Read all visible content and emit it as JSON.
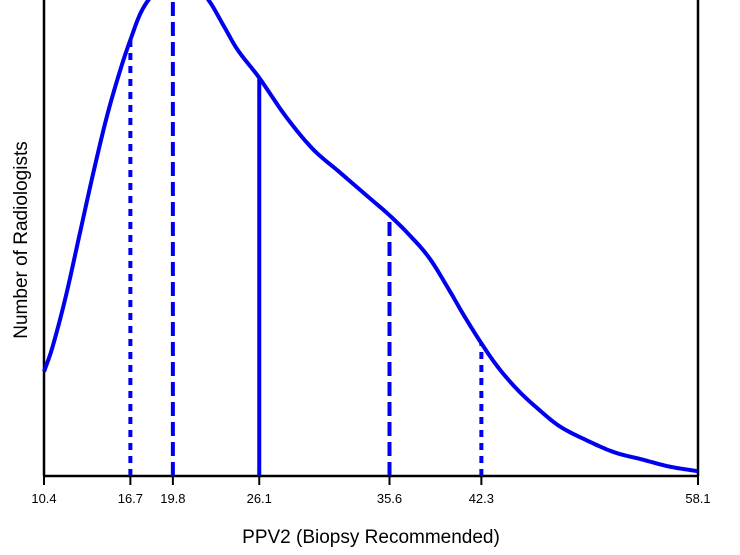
{
  "chart_data": {
    "type": "line",
    "title": "",
    "xlabel": "PPV2 (Biopsy Recommended)",
    "ylabel": "Number of Radiologists",
    "xlim": [
      10.4,
      58.1
    ],
    "ylim": [
      0,
      100
    ],
    "grid": false,
    "legend": "none",
    "y_ticks_labeled": false,
    "x_ticks": [
      10.4,
      16.7,
      19.8,
      26.1,
      35.6,
      42.3,
      58.1
    ],
    "x_tick_labels": [
      "10.4",
      "16.7",
      "19.8",
      "26.1",
      "35.6",
      "42.3",
      "58.1"
    ],
    "series": [
      {
        "x": [
          10.4,
          11.0,
          12.0,
          13.0,
          14.0,
          15.0,
          16.0,
          16.7,
          17.5,
          18.5,
          19.8,
          20.6,
          21.5,
          22.5,
          23.5,
          24.5,
          26.1,
          28.0,
          30.0,
          32.0,
          34.0,
          35.6,
          37.0,
          38.5,
          40.0,
          41.0,
          42.3,
          43.5,
          45.0,
          46.5,
          48.0,
          50.0,
          52.0,
          54.0,
          56.0,
          58.1
        ],
        "y": [
          22,
          27,
          38,
          51,
          64,
          76,
          86,
          92,
          98,
          102,
          104,
          104,
          103.5,
          100,
          95,
          90,
          84,
          76,
          69,
          64,
          59,
          55,
          51,
          46,
          39,
          34,
          28,
          23,
          18,
          14,
          10.5,
          7.5,
          5,
          3.5,
          2,
          1
        ]
      }
    ],
    "vertical_lines": [
      {
        "x": 16.7,
        "style": "dotted"
      },
      {
        "x": 19.8,
        "style": "dashed"
      },
      {
        "x": 26.1,
        "style": "solid"
      },
      {
        "x": 35.6,
        "style": "dashed"
      },
      {
        "x": 42.3,
        "style": "dotted"
      }
    ],
    "colors": {
      "curve": "#0000ee",
      "axis": "#000000",
      "text": "#000000"
    }
  }
}
